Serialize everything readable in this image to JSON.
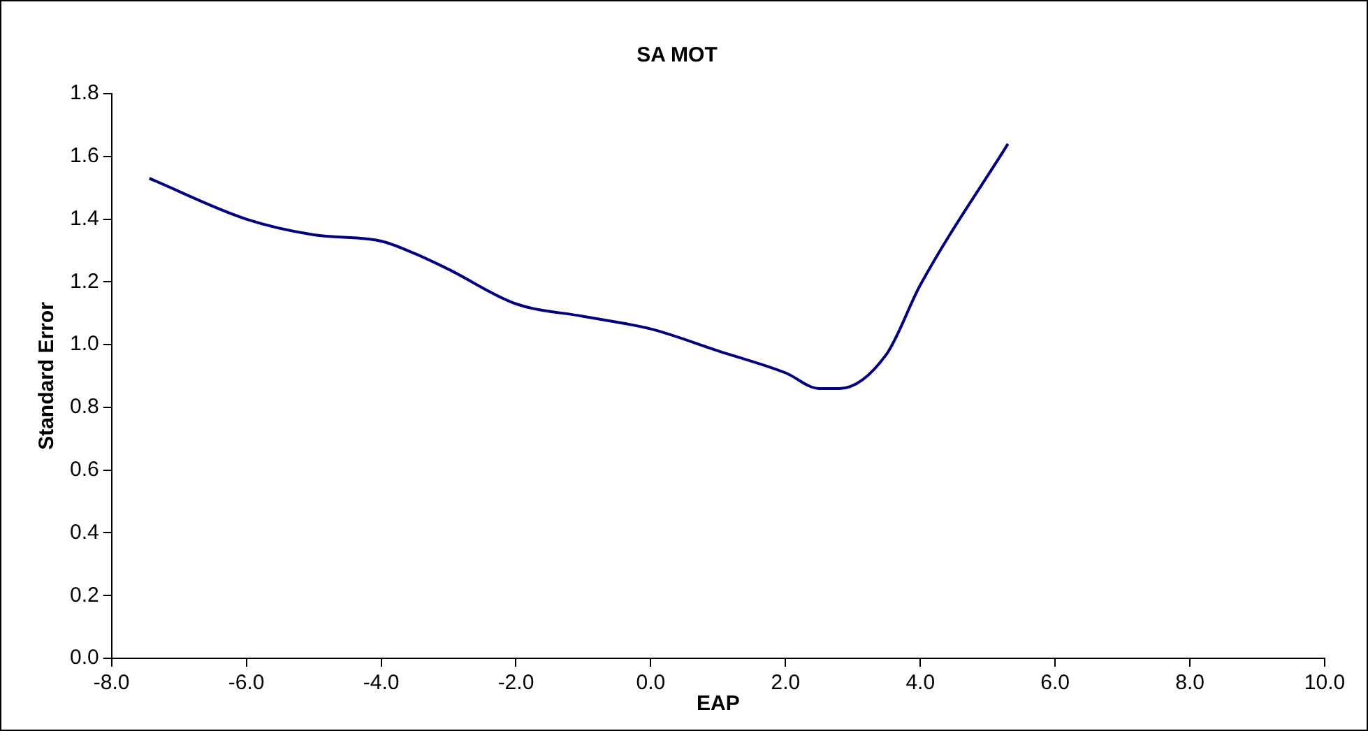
{
  "chart_data": {
    "type": "line",
    "title": "SA MOT",
    "xlabel": "EAP",
    "ylabel": "Standard Error",
    "x": [
      -7.44,
      -6,
      -5,
      -4,
      -3.5,
      -3,
      -2,
      -1,
      0,
      1,
      2,
      2.5,
      2.8,
      3.5,
      4,
      5.3
    ],
    "series": [
      {
        "color": "#000080",
        "values": [
          1.53,
          1.4,
          1.35,
          1.33,
          1.29,
          1.24,
          1.13,
          1.09,
          1.05,
          0.98,
          0.91,
          0.86,
          0.86,
          0.97,
          1.19,
          1.64
        ]
      }
    ],
    "xlim": [
      -8,
      10
    ],
    "xticks": [
      {
        "value": -8,
        "label": "-8.0"
      },
      {
        "value": -6,
        "label": "-6.0"
      },
      {
        "value": -4,
        "label": "-4.0"
      },
      {
        "value": -2,
        "label": "-2.0"
      },
      {
        "value": 0,
        "label": "0.0"
      },
      {
        "value": 2,
        "label": "2.0"
      },
      {
        "value": 4,
        "label": "4.0"
      },
      {
        "value": 6,
        "label": "6.0"
      },
      {
        "value": 8,
        "label": "8.0"
      },
      {
        "value": 10,
        "label": "10.0"
      }
    ],
    "ylim": [
      0,
      1.8
    ],
    "yticks": [
      {
        "value": 0,
        "label": "0.0"
      },
      {
        "value": 0.2,
        "label": "0.2"
      },
      {
        "value": 0.4,
        "label": "0.4"
      },
      {
        "value": 0.6,
        "label": "0.6"
      },
      {
        "value": 0.8,
        "label": "0.8"
      },
      {
        "value": 1,
        "label": "1.0"
      },
      {
        "value": 1.2,
        "label": "1.2"
      },
      {
        "value": 1.4,
        "label": "1.4"
      },
      {
        "value": 1.6,
        "label": "1.6"
      },
      {
        "value": 1.8,
        "label": "1.8"
      }
    ],
    "grid": false,
    "legend": false,
    "marker": "none",
    "line_style": "solid"
  }
}
